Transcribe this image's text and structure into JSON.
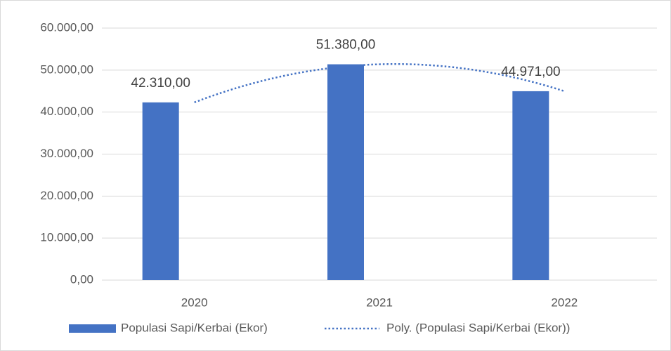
{
  "chart_data": {
    "type": "bar",
    "categories": [
      "2020",
      "2021",
      "2022"
    ],
    "series": [
      {
        "name": "Populasi Sapi/Kerbai (Ekor)",
        "color": "#4472c4",
        "values": [
          42310,
          51380,
          44971
        ],
        "value_labels": [
          "42.310,00",
          "51.380,00",
          "44.971,00"
        ]
      }
    ],
    "trendline": {
      "name": "Poly. (Populasi Sapi/Kerbai (Ekor))",
      "color": "#4472c4",
      "style": "dotted",
      "order": 2
    },
    "ylim": [
      0,
      60000
    ],
    "yticks": [
      {
        "value": 0,
        "label": "0,00"
      },
      {
        "value": 10000,
        "label": "10.000,00"
      },
      {
        "value": 20000,
        "label": "20.000,00"
      },
      {
        "value": 30000,
        "label": "30.000,00"
      },
      {
        "value": 40000,
        "label": "40.000,00"
      },
      {
        "value": 50000,
        "label": "50.000,00"
      },
      {
        "value": 60000,
        "label": "60.000,00"
      }
    ],
    "grid": true,
    "legend": "bottom"
  }
}
